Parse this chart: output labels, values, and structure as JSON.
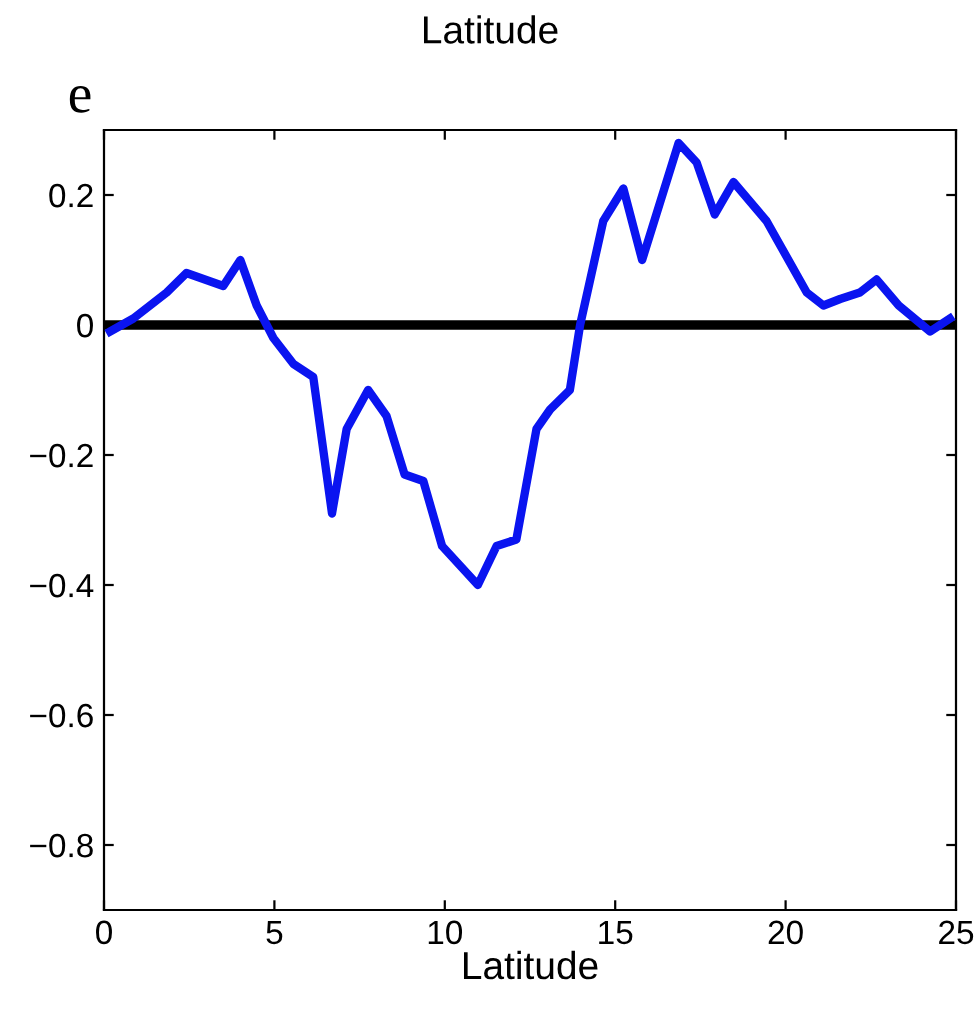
{
  "chart_data": {
    "type": "line",
    "xlabel": "Latitude",
    "annotations": [
      "Latitude",
      "e"
    ],
    "xlim": [
      0,
      25
    ],
    "ylim": [
      -0.9,
      0.3
    ],
    "xticks": [
      0,
      5,
      10,
      15,
      20,
      25
    ],
    "yticks": [
      -0.8,
      -0.6,
      -0.4,
      -0.2,
      0,
      0.2
    ],
    "grid": false,
    "marker": "none",
    "line_style": "solid",
    "ref_lines": [
      {
        "axis": "y",
        "value": 0,
        "color": "#000000"
      }
    ],
    "series": [
      {
        "color": "#0a14f0",
        "x": [
          0.18,
          0.86,
          1.84,
          2.42,
          3.5,
          4.0,
          4.48,
          4.97,
          5.56,
          6.14,
          6.69,
          7.12,
          7.75,
          8.29,
          8.82,
          9.37,
          9.92,
          10.97,
          11.52,
          12.1,
          12.69,
          13.09,
          13.67,
          13.97,
          14.65,
          15.24,
          15.79,
          16.86,
          17.39,
          17.92,
          18.47,
          19.44,
          20.62,
          21.11,
          21.6,
          22.18,
          22.67,
          23.32,
          24.24,
          24.82
        ],
        "values": [
          -0.01,
          0.01,
          0.05,
          0.08,
          0.06,
          0.1,
          0.03,
          -0.02,
          -0.06,
          -0.08,
          -0.29,
          -0.16,
          -0.1,
          -0.14,
          -0.23,
          -0.24,
          -0.34,
          -0.4,
          -0.34,
          -0.33,
          -0.16,
          -0.13,
          -0.1,
          0.0,
          0.16,
          0.21,
          0.1,
          0.28,
          0.25,
          0.17,
          0.22,
          0.16,
          0.05,
          0.03,
          0.04,
          0.05,
          0.07,
          0.03,
          -0.01,
          0.01
        ]
      }
    ]
  }
}
